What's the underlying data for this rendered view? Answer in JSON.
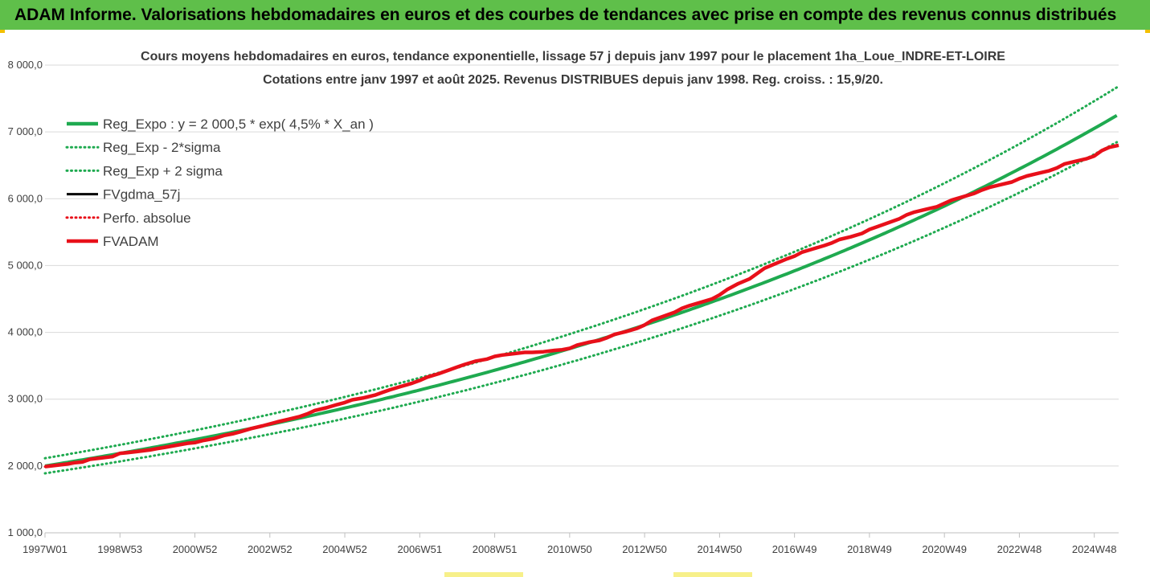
{
  "header": {
    "title": "ADAM Informe. Valorisations hebdomadaires en euros et des courbes de tendances avec prise en compte des revenus connus distribués"
  },
  "colors": {
    "banner": "#5fbf4a",
    "trend": "#1faa50",
    "actual": "#e8101a",
    "gdma": "#000000",
    "corner": "#f2c000"
  },
  "chart_data": {
    "type": "line",
    "title": "Cours moyens hebdomadaires en euros, tendance exponentielle, lissage 57 j depuis janv 1997  pour le placement 1ha_Loue_INDRE-ET-LOIRE",
    "subtitle": "Cotations entre janv 1997 et août 2025. Revenus DISTRIBUES depuis janv 1998. Reg. croiss. : 15,9/20.",
    "xlabel": "",
    "ylabel": "",
    "ylim": [
      1000,
      8000
    ],
    "yticks": [
      "1 000,0",
      "2 000,0",
      "3 000,0",
      "4 000,0",
      "5 000,0",
      "6 000,0",
      "7 000,0",
      "8 000,0"
    ],
    "xlim": [
      1997.0,
      2025.65
    ],
    "xticks": [
      {
        "label": "1997W01",
        "x": 1997.0
      },
      {
        "label": "1998W53",
        "x": 1999.0
      },
      {
        "label": "2000W52",
        "x": 2001.0
      },
      {
        "label": "2002W52",
        "x": 2003.0
      },
      {
        "label": "2004W52",
        "x": 2005.0
      },
      {
        "label": "2006W51",
        "x": 2007.0
      },
      {
        "label": "2008W51",
        "x": 2009.0
      },
      {
        "label": "2010W50",
        "x": 2011.0
      },
      {
        "label": "2012W50",
        "x": 2013.0
      },
      {
        "label": "2014W50",
        "x": 2015.0
      },
      {
        "label": "2016W49",
        "x": 2017.0
      },
      {
        "label": "2018W49",
        "x": 2019.0
      },
      {
        "label": "2020W49",
        "x": 2021.0
      },
      {
        "label": "2022W48",
        "x": 2023.0
      },
      {
        "label": "2024W48",
        "x": 2025.0
      }
    ],
    "grid": true,
    "legend_position": "top-left",
    "series": [
      {
        "name": "Reg_Expo : y = 2 000,5 * exp( 4,5% *  X_an )",
        "style": "solid",
        "color": "#1faa50",
        "model": {
          "a": 2000.5,
          "rate": 0.045,
          "factor": 1.0
        }
      },
      {
        "name": "Reg_Exp - 2*sigma",
        "style": "dotted",
        "color": "#1faa50",
        "model": {
          "a": 2000.5,
          "rate": 0.045,
          "factor": 0.945
        }
      },
      {
        "name": "Reg_Exp + 2 sigma",
        "style": "dotted",
        "color": "#1faa50",
        "model": {
          "a": 2000.5,
          "rate": 0.045,
          "factor": 1.058
        }
      },
      {
        "name": "FVgdma_57j",
        "style": "solid",
        "color": "#000000",
        "same_as": "FVADAM"
      },
      {
        "name": "Perfo. absolue",
        "style": "dotted",
        "color": "#e8101a",
        "same_as": "FVADAM"
      },
      {
        "name": "FVADAM",
        "style": "solid",
        "color": "#e8101a",
        "x": [
          1997.0,
          1997.3,
          1997.6,
          1997.8,
          1998.0,
          1998.2,
          1998.5,
          1998.8,
          1999.0,
          1999.2,
          1999.5,
          1999.8,
          2000.0,
          2000.2,
          2000.5,
          2000.8,
          2001.0,
          2001.2,
          2001.5,
          2001.8,
          2002.0,
          2002.2,
          2002.5,
          2002.8,
          2003.0,
          2003.2,
          2003.5,
          2003.8,
          2004.0,
          2004.2,
          2004.5,
          2004.8,
          2005.0,
          2005.2,
          2005.5,
          2005.8,
          2006.0,
          2006.2,
          2006.5,
          2006.8,
          2007.0,
          2007.2,
          2007.5,
          2007.8,
          2008.0,
          2008.2,
          2008.5,
          2008.8,
          2009.0,
          2009.2,
          2009.5,
          2009.8,
          2010.0,
          2010.3,
          2010.6,
          2010.8,
          2011.0,
          2011.2,
          2011.5,
          2011.8,
          2012.0,
          2012.2,
          2012.5,
          2012.8,
          2013.0,
          2013.2,
          2013.5,
          2013.8,
          2014.0,
          2014.2,
          2014.5,
          2014.8,
          2015.0,
          2015.2,
          2015.5,
          2015.8,
          2016.0,
          2016.2,
          2016.5,
          2016.8,
          2017.0,
          2017.2,
          2017.5,
          2017.8,
          2018.0,
          2018.2,
          2018.5,
          2018.8,
          2019.0,
          2019.2,
          2019.5,
          2019.8,
          2020.0,
          2020.2,
          2020.5,
          2020.8,
          2021.0,
          2021.2,
          2021.5,
          2021.8,
          2022.0,
          2022.2,
          2022.5,
          2022.8,
          2023.0,
          2023.2,
          2023.5,
          2023.8,
          2024.0,
          2024.2,
          2024.5,
          2024.8,
          2025.0,
          2025.2,
          2025.4,
          2025.65
        ],
        "y": [
          1990,
          2010,
          2030,
          2050,
          2060,
          2100,
          2120,
          2140,
          2190,
          2200,
          2220,
          2240,
          2260,
          2280,
          2310,
          2340,
          2350,
          2380,
          2410,
          2460,
          2480,
          2510,
          2560,
          2600,
          2630,
          2660,
          2700,
          2740,
          2780,
          2830,
          2870,
          2920,
          2950,
          2990,
          3020,
          3060,
          3100,
          3140,
          3190,
          3240,
          3280,
          3330,
          3380,
          3440,
          3480,
          3520,
          3570,
          3600,
          3640,
          3660,
          3680,
          3700,
          3700,
          3710,
          3730,
          3740,
          3760,
          3810,
          3850,
          3880,
          3920,
          3970,
          4010,
          4060,
          4110,
          4180,
          4240,
          4300,
          4360,
          4400,
          4450,
          4500,
          4560,
          4640,
          4730,
          4800,
          4880,
          4960,
          5030,
          5100,
          5140,
          5200,
          5250,
          5300,
          5340,
          5390,
          5430,
          5480,
          5540,
          5580,
          5640,
          5700,
          5760,
          5800,
          5840,
          5880,
          5930,
          5980,
          6030,
          6080,
          6130,
          6170,
          6210,
          6250,
          6300,
          6340,
          6380,
          6420,
          6460,
          6520,
          6560,
          6600,
          6640,
          6720,
          6770,
          6800
        ]
      }
    ]
  }
}
